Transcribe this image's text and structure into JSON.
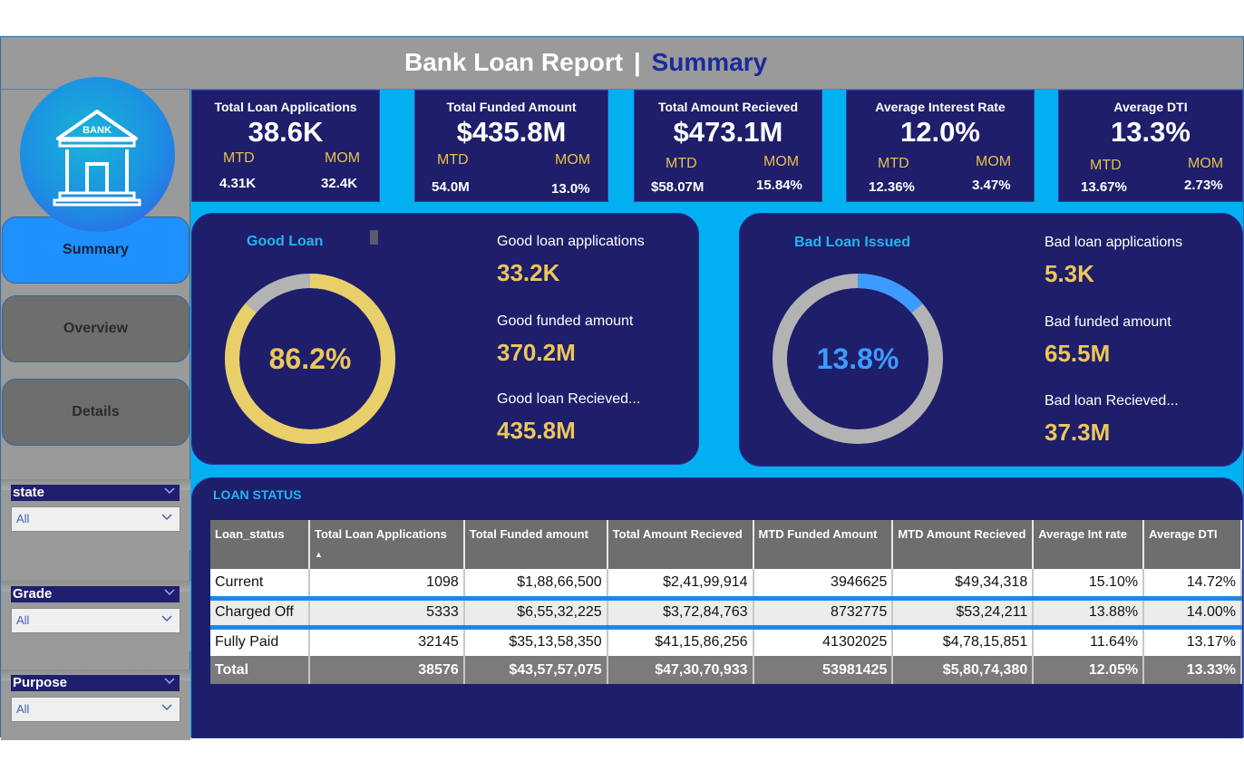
{
  "header": {
    "title_main": "Bank Loan Report",
    "separator": "|",
    "title_page": "Summary"
  },
  "logo": {
    "text": "BANK",
    "icon": "bank-building-icon"
  },
  "nav": {
    "summary": "Summary",
    "overview": "Overview",
    "details": "Details"
  },
  "slicers": [
    {
      "label": "state",
      "value": "All"
    },
    {
      "label": "Grade",
      "value": "All"
    },
    {
      "label": "Purpose",
      "value": "All"
    }
  ],
  "kpis": [
    {
      "title": "Total Loan  Applications",
      "value": "38.6K",
      "mtd_label": "MTD",
      "mom_label": "MOM",
      "mtd": "4.31K",
      "mom": "32.4K"
    },
    {
      "title": "Total Funded Amount",
      "value": "$435.8M",
      "mtd_label": "MTD",
      "mom_label": "MOM",
      "mtd": "54.0M",
      "mom": "13.0%"
    },
    {
      "title": "Total Amount Recieved",
      "value": "$473.1M",
      "mtd_label": "MTD",
      "mom_label": "MOM",
      "mtd": "$58.07M",
      "mom": "15.84%"
    },
    {
      "title": "Average Interest Rate",
      "value": "12.0%",
      "mtd_label": "MTD",
      "mom_label": "MOM",
      "mtd": "12.36%",
      "mom": "3.47%"
    },
    {
      "title": "Average DTI",
      "value": "13.3%",
      "mtd_label": "MTD",
      "mom_label": "MOM",
      "mtd": "13.67%",
      "mom": "2.73%"
    }
  ],
  "good_loan": {
    "title": "Good Loan",
    "percent_label": "86.2%",
    "percent": 86.2,
    "ring_color": "#e8cf6a",
    "rest_color": "#b3b3b3",
    "text_color": "#ecc65a",
    "apps_label": "Good loan applications",
    "apps_value": "33.2K",
    "funded_label": "Good funded amount",
    "funded_value": "370.2M",
    "received_label": "Good loan Recieved...",
    "received_value": "435.8M"
  },
  "bad_loan": {
    "title": "Bad Loan Issued",
    "percent_label": "13.8%",
    "percent": 13.8,
    "ring_color": "#3d9bff",
    "rest_color": "#b3b3b3",
    "text_color": "#3d9bff",
    "apps_label": "Bad loan applications",
    "apps_value": "5.3K",
    "funded_label": "Bad funded amount",
    "funded_value": "65.5M",
    "received_label": "Bad loan Recieved...",
    "received_value": "37.3M"
  },
  "loan_status": {
    "title": "LOAN STATUS",
    "columns": [
      "Loan_status",
      "Total Loan Applications",
      "Total Funded amount",
      "Total Amount Recieved",
      "MTD Funded Amount",
      "MTD Amount Recieved",
      "Average Int rate",
      "Average DTI"
    ],
    "rows": [
      [
        "Current",
        "1098",
        "$1,88,66,500",
        "$2,41,99,914",
        "3946625",
        "$49,34,318",
        "15.10%",
        "14.72%"
      ],
      [
        "Charged Off",
        "5333",
        "$6,55,32,225",
        "$3,72,84,763",
        "8732775",
        "$53,24,211",
        "13.88%",
        "14.00%"
      ],
      [
        "Fully Paid",
        "32145",
        "$35,13,58,350",
        "$41,15,86,256",
        "41302025",
        "$4,78,15,851",
        "11.64%",
        "13.17%"
      ]
    ],
    "total": [
      "Total",
      "38576",
      "$43,57,57,075",
      "$47,30,70,933",
      "53981425",
      "$5,80,74,380",
      "12.05%",
      "13.33%"
    ]
  }
}
